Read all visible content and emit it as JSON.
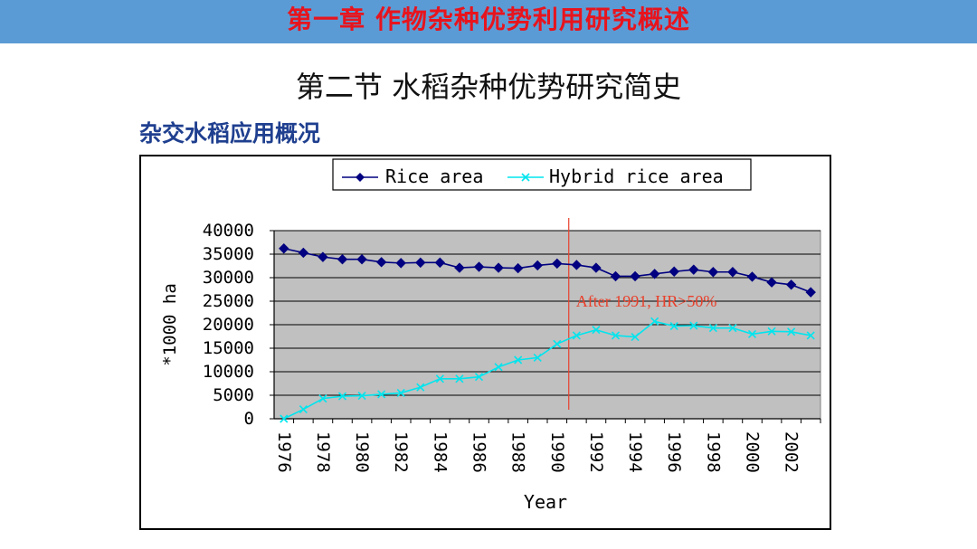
{
  "header": {
    "chapter_title": "第一章 作物杂种优势利用研究概述",
    "section_title": "第二节 水稻杂种优势研究简史",
    "subtitle": "杂交水稻应用概况",
    "bar_color": "#5b9bd5",
    "chapter_color": "#e8141d",
    "subtitle_color": "#1f3f8f"
  },
  "chart_data": {
    "type": "line",
    "title": "",
    "xlabel": "Year",
    "ylabel": "*1000 ha",
    "ylim": [
      0,
      40000
    ],
    "yticks": [
      0,
      5000,
      10000,
      15000,
      20000,
      25000,
      30000,
      35000,
      40000
    ],
    "xticks": [
      "1976",
      "1978",
      "1980",
      "1982",
      "1984",
      "1986",
      "1988",
      "1990",
      "1992",
      "1994",
      "1996",
      "1998",
      "2000",
      "2002"
    ],
    "x": [
      1976,
      1977,
      1978,
      1979,
      1980,
      1981,
      1982,
      1983,
      1984,
      1985,
      1986,
      1987,
      1988,
      1989,
      1990,
      1991,
      1992,
      1993,
      1994,
      1995,
      1996,
      1997,
      1998,
      1999,
      2000,
      2001,
      2002,
      2003
    ],
    "series": [
      {
        "name": "Rice area",
        "color": "#000080",
        "marker": "diamond",
        "values": [
          36200,
          35300,
          34400,
          33900,
          33900,
          33300,
          33100,
          33200,
          33200,
          32100,
          32300,
          32100,
          32000,
          32600,
          33000,
          32700,
          32100,
          30300,
          30300,
          30800,
          31300,
          31700,
          31200,
          31200,
          30200,
          29000,
          28500,
          26900
        ]
      },
      {
        "name": "Hybrid rice area",
        "color": "#00e5ee",
        "marker": "x",
        "values": [
          0,
          2000,
          4300,
          4800,
          4900,
          5200,
          5500,
          6700,
          8500,
          8500,
          8900,
          11000,
          12500,
          13000,
          15900,
          17700,
          18900,
          17700,
          17400,
          20700,
          19700,
          19800,
          19300,
          19300,
          18000,
          18600,
          18500,
          17700
        ]
      }
    ],
    "annotation": {
      "text": "After 1991, HR>50%",
      "x": 1990.6,
      "y": 25000,
      "color": "#e8412c"
    },
    "vertical_line": {
      "x": 1990.6,
      "color": "#e8412c"
    },
    "plot_background": "#c0c0c0",
    "legend_position": "top"
  }
}
